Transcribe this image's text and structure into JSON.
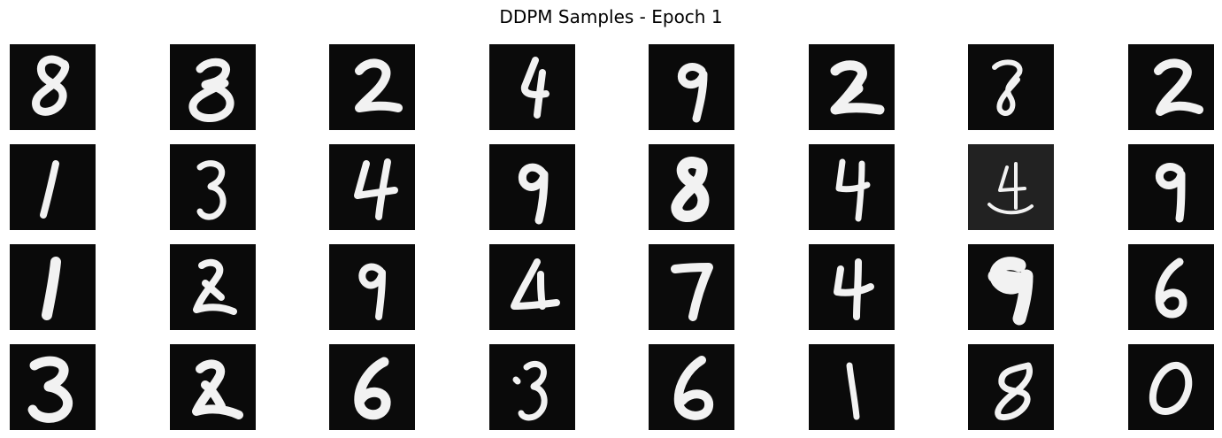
{
  "title": "DDPM Samples - Epoch 1",
  "colors": {
    "background": "#ffffff",
    "tile_background": "#080808",
    "stroke": "#f2f2f2"
  },
  "samples": [
    {
      "digit": "8",
      "background": "#0b0b0b"
    },
    {
      "digit": "8",
      "background": "#0a0a0a"
    },
    {
      "digit": "2",
      "background": "#0a0a0a"
    },
    {
      "digit": "4",
      "background": "#0b0b0b"
    },
    {
      "digit": "9",
      "background": "#0a0a0a"
    },
    {
      "digit": "2",
      "background": "#0a0a0a"
    },
    {
      "digit": "8",
      "background": "#0b0b0b"
    },
    {
      "digit": "2",
      "background": "#0a0a0a"
    },
    {
      "digit": "1",
      "background": "#0a0a0a"
    },
    {
      "digit": "3",
      "background": "#0a0a0a"
    },
    {
      "digit": "4",
      "background": "#0b0b0b"
    },
    {
      "digit": "9",
      "background": "#0a0a0a"
    },
    {
      "digit": "8",
      "background": "#0b0b0b"
    },
    {
      "digit": "4",
      "background": "#0a0a0a"
    },
    {
      "digit": "4",
      "background": "#222222"
    },
    {
      "digit": "9",
      "background": "#0a0a0a"
    },
    {
      "digit": "1",
      "background": "#0a0a0a"
    },
    {
      "digit": "2",
      "background": "#0a0a0a"
    },
    {
      "digit": "9",
      "background": "#0b0b0b"
    },
    {
      "digit": "4",
      "background": "#0a0a0a"
    },
    {
      "digit": "7",
      "background": "#0b0b0b"
    },
    {
      "digit": "4",
      "background": "#0a0a0a"
    },
    {
      "digit": "9",
      "background": "#0b0b0b"
    },
    {
      "digit": "6",
      "background": "#0a0a0a"
    },
    {
      "digit": "3",
      "background": "#0a0a0a"
    },
    {
      "digit": "2",
      "background": "#0a0a0a"
    },
    {
      "digit": "6",
      "background": "#0b0b0b"
    },
    {
      "digit": "3",
      "background": "#0a0a0a"
    },
    {
      "digit": "6",
      "background": "#0b0b0b"
    },
    {
      "digit": "1",
      "background": "#0a0a0a"
    },
    {
      "digit": "8",
      "background": "#0b0b0b"
    },
    {
      "digit": "0",
      "background": "#0a0a0a"
    }
  ]
}
